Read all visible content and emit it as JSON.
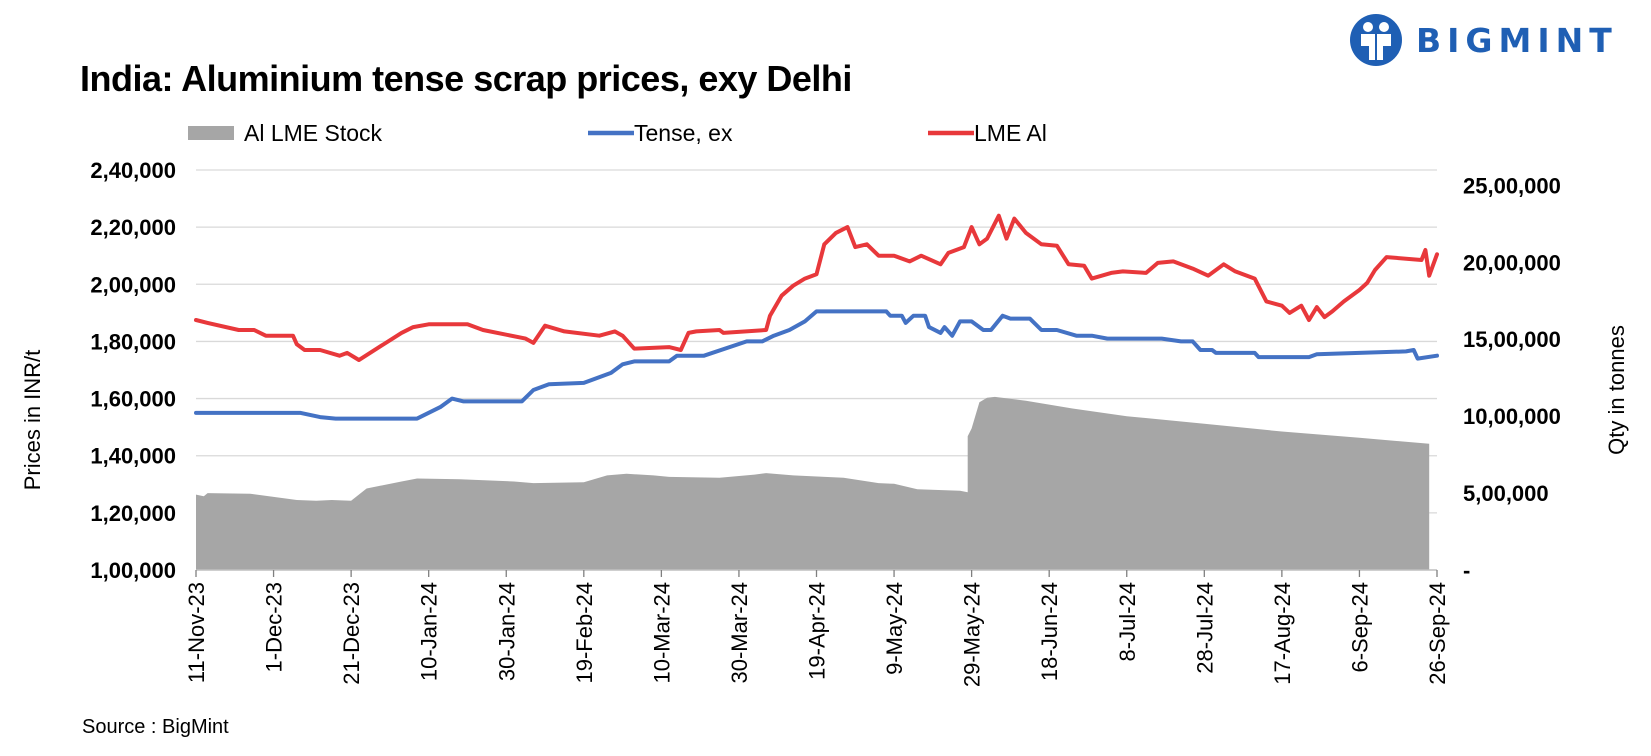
{
  "title": "India: Aluminium tense scrap prices, exy Delhi",
  "source": "Source : BigMint",
  "logo": {
    "text": "BIGMINT",
    "icon": "bigmint-people-logo",
    "color": "#1f5fb4"
  },
  "chart_data": {
    "type": "line",
    "y_left": {
      "label": "Prices in INR/t",
      "range": [
        100000,
        240000
      ],
      "ticks": [
        {
          "value": 100000,
          "label": "1,00,000"
        },
        {
          "value": 120000,
          "label": "1,20,000"
        },
        {
          "value": 140000,
          "label": "1,40,000"
        },
        {
          "value": 160000,
          "label": "1,60,000"
        },
        {
          "value": 180000,
          "label": "1,80,000"
        },
        {
          "value": 200000,
          "label": "2,00,000"
        },
        {
          "value": 220000,
          "label": "2,20,000"
        },
        {
          "value": 240000,
          "label": "2,40,000"
        }
      ]
    },
    "y_right": {
      "label": "Qty in tonnes",
      "range": [
        0,
        2600000
      ],
      "ticks": [
        {
          "value": 0,
          "label": "-"
        },
        {
          "value": 500000,
          "label": "5,00,000"
        },
        {
          "value": 1000000,
          "label": "10,00,000"
        },
        {
          "value": 1500000,
          "label": "15,00,000"
        },
        {
          "value": 2000000,
          "label": "20,00,000"
        },
        {
          "value": 2500000,
          "label": "25,00,000"
        }
      ]
    },
    "x_axis": {
      "range": [
        "2023-11-11",
        "2024-09-26"
      ],
      "ticks": [
        {
          "date": "2023-11-11",
          "label": "11-Nov-23"
        },
        {
          "date": "2023-12-01",
          "label": "1-Dec-23"
        },
        {
          "date": "2023-12-21",
          "label": "21-Dec-23"
        },
        {
          "date": "2024-01-10",
          "label": "10-Jan-24"
        },
        {
          "date": "2024-01-30",
          "label": "30-Jan-24"
        },
        {
          "date": "2024-02-19",
          "label": "19-Feb-24"
        },
        {
          "date": "2024-03-10",
          "label": "10-Mar-24"
        },
        {
          "date": "2024-03-30",
          "label": "30-Mar-24"
        },
        {
          "date": "2024-04-19",
          "label": "19-Apr-24"
        },
        {
          "date": "2024-05-09",
          "label": "9-May-24"
        },
        {
          "date": "2024-05-29",
          "label": "29-May-24"
        },
        {
          "date": "2024-06-18",
          "label": "18-Jun-24"
        },
        {
          "date": "2024-07-08",
          "label": "8-Jul-24"
        },
        {
          "date": "2024-07-28",
          "label": "28-Jul-24"
        },
        {
          "date": "2024-08-17",
          "label": "17-Aug-24"
        },
        {
          "date": "2024-09-06",
          "label": "6-Sep-24"
        },
        {
          "date": "2024-09-26",
          "label": "26-Sep-24"
        }
      ]
    },
    "grid": true,
    "legend_position": "top",
    "series": [
      {
        "name": "Al LME Stock",
        "type": "area",
        "axis": "right",
        "color": "#a6a6a6",
        "points": [
          [
            "2023-11-11",
            490000
          ],
          [
            "2023-11-13",
            480000
          ],
          [
            "2023-11-14",
            500000
          ],
          [
            "2023-11-25",
            495000
          ],
          [
            "2023-12-01",
            475000
          ],
          [
            "2023-12-07",
            455000
          ],
          [
            "2023-12-12",
            450000
          ],
          [
            "2023-12-16",
            455000
          ],
          [
            "2023-12-21",
            450000
          ],
          [
            "2023-12-25",
            530000
          ],
          [
            "2024-01-03",
            575000
          ],
          [
            "2024-01-07",
            595000
          ],
          [
            "2024-01-18",
            590000
          ],
          [
            "2024-02-01",
            575000
          ],
          [
            "2024-02-06",
            565000
          ],
          [
            "2024-02-19",
            570000
          ],
          [
            "2024-02-25",
            615000
          ],
          [
            "2024-03-01",
            625000
          ],
          [
            "2024-03-08",
            615000
          ],
          [
            "2024-03-12",
            605000
          ],
          [
            "2024-03-25",
            600000
          ],
          [
            "2024-04-03",
            620000
          ],
          [
            "2024-04-06",
            630000
          ],
          [
            "2024-04-13",
            615000
          ],
          [
            "2024-04-26",
            600000
          ],
          [
            "2024-05-05",
            565000
          ],
          [
            "2024-05-09",
            560000
          ],
          [
            "2024-05-15",
            525000
          ],
          [
            "2024-05-26",
            515000
          ],
          [
            "2024-05-28",
            505000
          ],
          [
            "2024-05-28",
            870000
          ],
          [
            "2024-05-29",
            920000
          ],
          [
            "2024-05-31",
            1090000
          ],
          [
            "2024-06-02",
            1120000
          ],
          [
            "2024-06-04",
            1125000
          ],
          [
            "2024-06-12",
            1100000
          ],
          [
            "2024-06-24",
            1050000
          ],
          [
            "2024-07-08",
            1000000
          ],
          [
            "2024-07-28",
            950000
          ],
          [
            "2024-08-17",
            900000
          ],
          [
            "2024-09-06",
            860000
          ],
          [
            "2024-09-24",
            820000
          ]
        ]
      },
      {
        "name": "Tense, ex",
        "type": "line",
        "axis": "left",
        "color": "#4472c4",
        "points": [
          [
            "2023-11-11",
            155000
          ],
          [
            "2023-11-18",
            155000
          ],
          [
            "2023-12-08",
            155000
          ],
          [
            "2023-12-13",
            153500
          ],
          [
            "2023-12-17",
            153000
          ],
          [
            "2024-01-07",
            153000
          ],
          [
            "2024-01-13",
            157000
          ],
          [
            "2024-01-16",
            160000
          ],
          [
            "2024-01-19",
            159000
          ],
          [
            "2024-01-30",
            159000
          ],
          [
            "2024-02-03",
            159000
          ],
          [
            "2024-02-06",
            163000
          ],
          [
            "2024-02-10",
            165000
          ],
          [
            "2024-02-19",
            165500
          ],
          [
            "2024-02-26",
            169000
          ],
          [
            "2024-02-29",
            172000
          ],
          [
            "2024-03-03",
            173000
          ],
          [
            "2024-03-12",
            173000
          ],
          [
            "2024-03-14",
            175000
          ],
          [
            "2024-03-21",
            175000
          ],
          [
            "2024-04-01",
            180000
          ],
          [
            "2024-04-05",
            180000
          ],
          [
            "2024-04-08",
            182000
          ],
          [
            "2024-04-12",
            184000
          ],
          [
            "2024-04-16",
            187000
          ],
          [
            "2024-04-19",
            190500
          ],
          [
            "2024-05-07",
            190500
          ],
          [
            "2024-05-08",
            189000
          ],
          [
            "2024-05-11",
            189000
          ],
          [
            "2024-05-12",
            186500
          ],
          [
            "2024-05-14",
            189000
          ],
          [
            "2024-05-17",
            189000
          ],
          [
            "2024-05-18",
            185000
          ],
          [
            "2024-05-21",
            183000
          ],
          [
            "2024-05-22",
            185000
          ],
          [
            "2024-05-24",
            182000
          ],
          [
            "2024-05-26",
            187000
          ],
          [
            "2024-05-29",
            187000
          ],
          [
            "2024-06-01",
            184000
          ],
          [
            "2024-06-03",
            184000
          ],
          [
            "2024-06-06",
            189000
          ],
          [
            "2024-06-08",
            188000
          ],
          [
            "2024-06-13",
            188000
          ],
          [
            "2024-06-16",
            184000
          ],
          [
            "2024-06-20",
            184000
          ],
          [
            "2024-06-25",
            182000
          ],
          [
            "2024-06-29",
            182000
          ],
          [
            "2024-07-03",
            181000
          ],
          [
            "2024-07-17",
            181000
          ],
          [
            "2024-07-22",
            180000
          ],
          [
            "2024-07-25",
            180000
          ],
          [
            "2024-07-27",
            177000
          ],
          [
            "2024-07-30",
            177000
          ],
          [
            "2024-07-31",
            176000
          ],
          [
            "2024-08-10",
            176000
          ],
          [
            "2024-08-11",
            174500
          ],
          [
            "2024-08-24",
            174500
          ],
          [
            "2024-08-26",
            175500
          ],
          [
            "2024-09-18",
            176500
          ],
          [
            "2024-09-20",
            177000
          ],
          [
            "2024-09-21",
            174000
          ],
          [
            "2024-09-26",
            175000
          ]
        ]
      },
      {
        "name": "LME Al",
        "type": "line",
        "axis": "left",
        "color": "#e8383b",
        "points": [
          [
            "2023-11-11",
            187500
          ],
          [
            "2023-11-14",
            186500
          ],
          [
            "2023-11-22",
            184000
          ],
          [
            "2023-11-26",
            184000
          ],
          [
            "2023-11-29",
            182000
          ],
          [
            "2023-12-06",
            182000
          ],
          [
            "2023-12-07",
            179000
          ],
          [
            "2023-12-09",
            177000
          ],
          [
            "2023-12-13",
            177000
          ],
          [
            "2023-12-18",
            175000
          ],
          [
            "2023-12-20",
            176000
          ],
          [
            "2023-12-23",
            173500
          ],
          [
            "2024-01-03",
            183000
          ],
          [
            "2024-01-06",
            185000
          ],
          [
            "2024-01-10",
            186000
          ],
          [
            "2024-01-20",
            186000
          ],
          [
            "2024-01-24",
            184000
          ],
          [
            "2024-02-04",
            181000
          ],
          [
            "2024-02-06",
            179500
          ],
          [
            "2024-02-09",
            185500
          ],
          [
            "2024-02-14",
            183500
          ],
          [
            "2024-02-23",
            182000
          ],
          [
            "2024-02-27",
            183500
          ],
          [
            "2024-02-29",
            182000
          ],
          [
            "2024-03-03",
            177500
          ],
          [
            "2024-03-12",
            178000
          ],
          [
            "2024-03-15",
            177000
          ],
          [
            "2024-03-17",
            183000
          ],
          [
            "2024-03-19",
            183500
          ],
          [
            "2024-03-25",
            184000
          ],
          [
            "2024-03-26",
            183000
          ],
          [
            "2024-04-06",
            184000
          ],
          [
            "2024-04-07",
            189000
          ],
          [
            "2024-04-10",
            196000
          ],
          [
            "2024-04-13",
            199500
          ],
          [
            "2024-04-16",
            202000
          ],
          [
            "2024-04-19",
            203500
          ],
          [
            "2024-04-21",
            214000
          ],
          [
            "2024-04-24",
            218000
          ],
          [
            "2024-04-27",
            220000
          ],
          [
            "2024-04-29",
            213000
          ],
          [
            "2024-05-02",
            214000
          ],
          [
            "2024-05-05",
            210000
          ],
          [
            "2024-05-09",
            210000
          ],
          [
            "2024-05-13",
            208000
          ],
          [
            "2024-05-16",
            210000
          ],
          [
            "2024-05-21",
            207000
          ],
          [
            "2024-05-23",
            211000
          ],
          [
            "2024-05-27",
            213000
          ],
          [
            "2024-05-29",
            220000
          ],
          [
            "2024-05-31",
            214000
          ],
          [
            "2024-06-02",
            216000
          ],
          [
            "2024-06-05",
            224000
          ],
          [
            "2024-06-07",
            216000
          ],
          [
            "2024-06-09",
            223000
          ],
          [
            "2024-06-12",
            218000
          ],
          [
            "2024-06-16",
            214000
          ],
          [
            "2024-06-20",
            213500
          ],
          [
            "2024-06-23",
            207000
          ],
          [
            "2024-06-27",
            206500
          ],
          [
            "2024-06-29",
            202000
          ],
          [
            "2024-07-04",
            204000
          ],
          [
            "2024-07-07",
            204500
          ],
          [
            "2024-07-13",
            204000
          ],
          [
            "2024-07-16",
            207500
          ],
          [
            "2024-07-20",
            208000
          ],
          [
            "2024-07-25",
            205500
          ],
          [
            "2024-07-29",
            203000
          ],
          [
            "2024-08-02",
            207000
          ],
          [
            "2024-08-05",
            204500
          ],
          [
            "2024-08-10",
            202000
          ],
          [
            "2024-08-13",
            194000
          ],
          [
            "2024-08-17",
            192500
          ],
          [
            "2024-08-19",
            190000
          ],
          [
            "2024-08-22",
            192500
          ],
          [
            "2024-08-24",
            187500
          ],
          [
            "2024-08-26",
            192000
          ],
          [
            "2024-08-28",
            188500
          ],
          [
            "2024-08-30",
            190500
          ],
          [
            "2024-09-02",
            194000
          ],
          [
            "2024-09-06",
            198000
          ],
          [
            "2024-09-08",
            200500
          ],
          [
            "2024-09-10",
            205000
          ],
          [
            "2024-09-13",
            209500
          ],
          [
            "2024-09-22",
            208500
          ],
          [
            "2024-09-23",
            212000
          ],
          [
            "2024-09-24",
            203000
          ],
          [
            "2024-09-26",
            210500
          ]
        ]
      }
    ]
  }
}
